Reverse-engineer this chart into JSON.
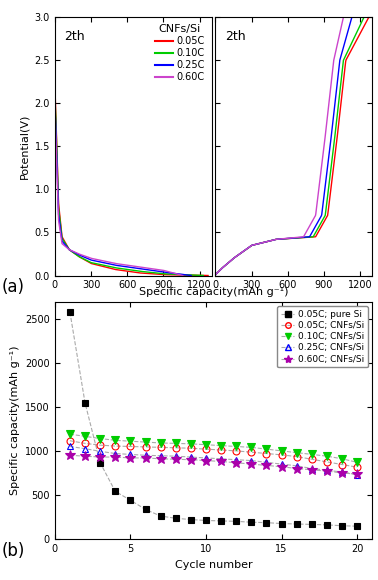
{
  "panel_a": {
    "title_left": "2th",
    "title_right": "2th",
    "annotation": "CNFs/Si",
    "xlabel": "Specific capacity(mAh g⁻¹)",
    "ylabel": "Potential(V)",
    "ylim": [
      0.0,
      3.0
    ],
    "rates": [
      "0.05C",
      "0.10C",
      "0.25C",
      "0.60C"
    ],
    "colors": [
      "#ff0000",
      "#00cc00",
      "#0000ff",
      "#cc44cc"
    ],
    "discharge_caps": [
      1270,
      1230,
      1130,
      1060
    ],
    "charge_caps": [
      1270,
      1230,
      1130,
      1060
    ]
  },
  "panel_b": {
    "xlabel": "Cycle number",
    "ylabel": "Specific capacity(mAh g⁻¹)",
    "ylim": [
      0,
      2700
    ],
    "yticks": [
      0,
      500,
      1000,
      1500,
      2000,
      2500
    ],
    "xticks": [
      0,
      5,
      10,
      15,
      20
    ],
    "legend_labels": [
      "0.05C; pure Si",
      "0.05C; CNFs/Si",
      "0.10C; CNFs/Si",
      "0.25C; CNFs/Si",
      "0.60C; CNFs/Si"
    ],
    "pure_si_x": [
      1,
      2,
      3,
      4,
      5,
      6,
      7,
      8,
      9,
      10,
      11,
      12,
      13,
      14,
      15,
      16,
      17,
      18,
      19,
      20
    ],
    "pure_si_y": [
      2580,
      1550,
      870,
      545,
      445,
      340,
      265,
      240,
      225,
      215,
      210,
      205,
      195,
      190,
      180,
      175,
      170,
      165,
      155,
      150
    ],
    "cnfs_005_x": [
      1,
      2,
      3,
      4,
      5,
      6,
      7,
      8,
      9,
      10,
      11,
      12,
      13,
      14,
      15,
      16,
      17,
      18,
      19,
      20
    ],
    "cnfs_005_y": [
      1120,
      1090,
      1070,
      1060,
      1055,
      1050,
      1045,
      1040,
      1035,
      1025,
      1015,
      1005,
      990,
      975,
      960,
      940,
      910,
      880,
      850,
      820
    ],
    "cnfs_010_x": [
      1,
      2,
      3,
      4,
      5,
      6,
      7,
      8,
      9,
      10,
      11,
      12,
      13,
      14,
      15,
      16,
      17,
      18,
      19,
      20
    ],
    "cnfs_010_y": [
      1195,
      1170,
      1145,
      1125,
      1115,
      1105,
      1095,
      1090,
      1085,
      1075,
      1065,
      1055,
      1045,
      1025,
      1005,
      985,
      965,
      945,
      915,
      875
    ],
    "cnfs_025_x": [
      1,
      2,
      3,
      4,
      5,
      6,
      7,
      8,
      9,
      10,
      11,
      12,
      13,
      14,
      15,
      16,
      17,
      18,
      19,
      20
    ],
    "cnfs_025_y": [
      1055,
      1030,
      1000,
      975,
      965,
      955,
      950,
      945,
      935,
      925,
      915,
      905,
      895,
      875,
      855,
      835,
      805,
      785,
      765,
      735
    ],
    "cnfs_060_x": [
      1,
      2,
      3,
      4,
      5,
      6,
      7,
      8,
      9,
      10,
      11,
      12,
      13,
      14,
      15,
      16,
      17,
      18,
      19,
      20
    ],
    "cnfs_060_y": [
      955,
      945,
      935,
      935,
      925,
      925,
      915,
      910,
      905,
      895,
      885,
      870,
      855,
      840,
      825,
      805,
      790,
      775,
      755,
      740
    ],
    "line_color": "#aaaaaa",
    "marker_colors": [
      "#000000",
      "#ff0000",
      "#00cc00",
      "#0000ff",
      "#aa00aa"
    ]
  },
  "colors_a": [
    "#ff0000",
    "#00cc00",
    "#0000ff",
    "#cc44cc"
  ],
  "label_a": "(a)",
  "label_b": "(b)"
}
